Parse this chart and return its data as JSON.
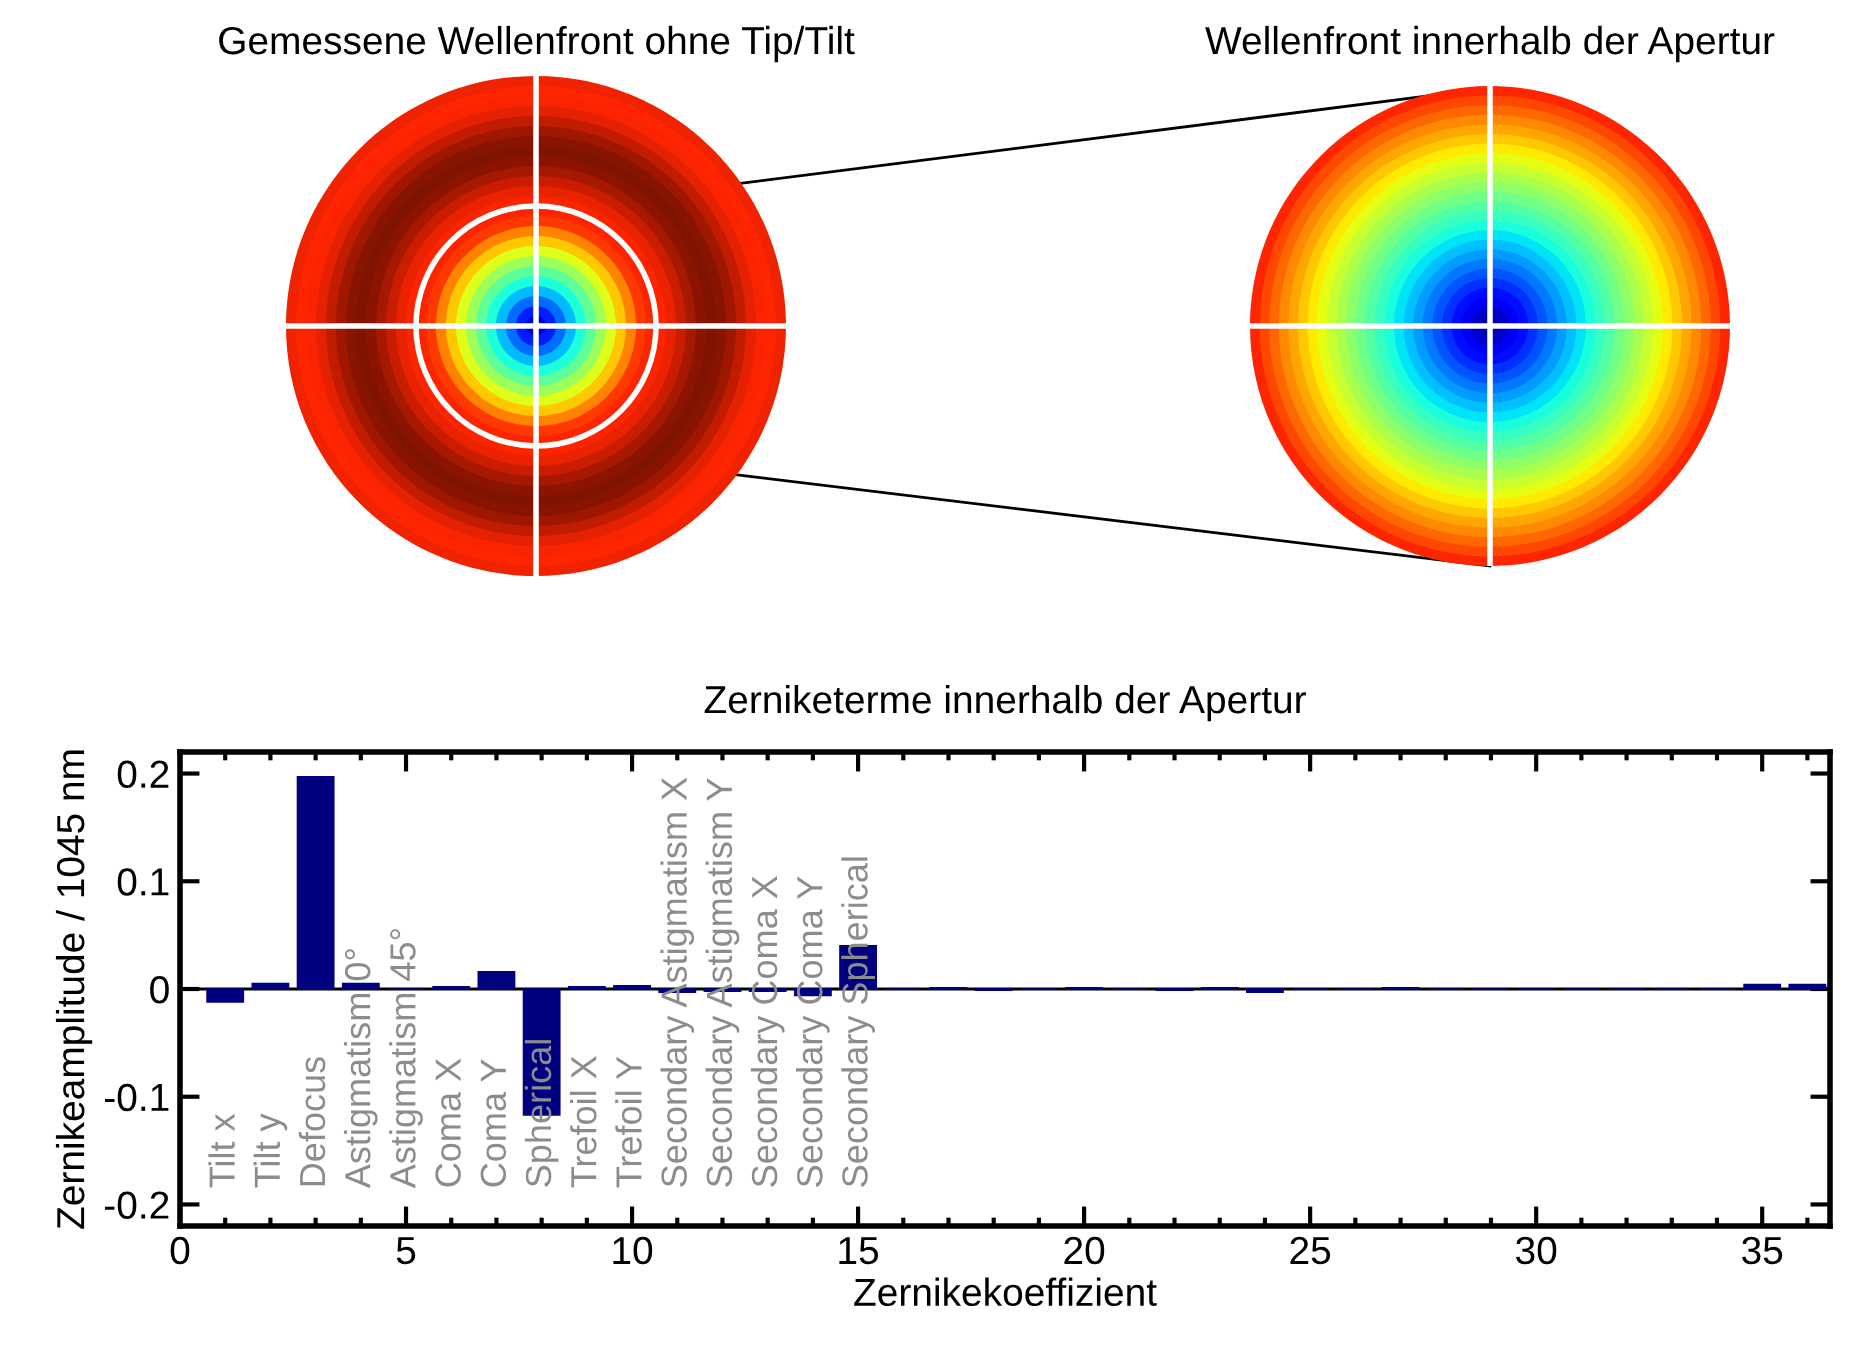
{
  "chart_data": {
    "type": "bar",
    "title": "Zerniketerme innerhalb der Apertur",
    "xlabel": "Zernikekoeffizient",
    "ylabel": "Zernikeamplitude / 1045 nm",
    "x": [
      1,
      2,
      3,
      4,
      5,
      6,
      7,
      8,
      9,
      10,
      11,
      12,
      13,
      14,
      15,
      16,
      17,
      18,
      19,
      20,
      21,
      22,
      23,
      24,
      25,
      26,
      27,
      28,
      29,
      30,
      31,
      32,
      33,
      34,
      35,
      36
    ],
    "values": [
      -0.012,
      0.005,
      0.197,
      0.005,
      0,
      0.002,
      0.016,
      -0.117,
      0.002,
      0.003,
      -0.003,
      -0.002,
      -0.002,
      -0.006,
      0.04,
      0,
      0.001,
      -0.001,
      0,
      0.001,
      0,
      -0.001,
      0.001,
      -0.003,
      0,
      0,
      0.001,
      0,
      0,
      0,
      0,
      0,
      0,
      0,
      0.004,
      0.004
    ],
    "color": "#000080",
    "xlim": [
      0,
      36.5
    ],
    "xticks": [
      0,
      5,
      10,
      15,
      20,
      25,
      30,
      35
    ],
    "ylim": [
      -0.22,
      0.22
    ],
    "yticks": [
      -0.2,
      -0.1,
      0,
      0.1,
      0.2
    ],
    "ref_lines": [
      {
        "axis": "y",
        "value": 0,
        "color": "#000000"
      }
    ],
    "grid": false,
    "legend": false,
    "annotations": [
      "Gemessene Wellenfront ohne Tip/Tilt",
      "Wellenfront innerhalb der Apertur",
      "Tilt x",
      "Tilt y",
      "Defocus",
      "Astigmatism 0°",
      "Astigmatism 45°",
      "Coma X",
      "Coma Y",
      "Spherical",
      "Trefoil X",
      "Trefoil Y",
      "Secondary Astigmatism X",
      "Secondary Astigmatism Y",
      "Secondary Coma X",
      "Secondary Coma Y",
      "Secondary Spherical"
    ]
  }
}
